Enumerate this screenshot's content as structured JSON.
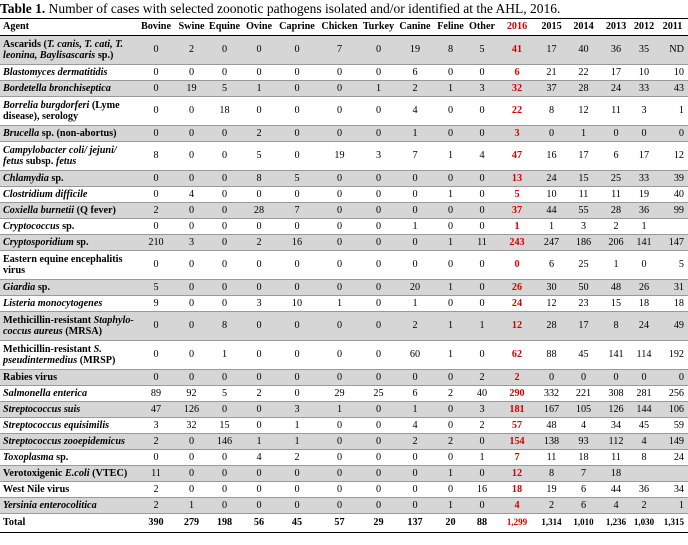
{
  "caption": {
    "label": "Table 1.",
    "text": " Number of cases with selected zoonotic pathogens isolated and/or identified at the AHL, 2016."
  },
  "columns": [
    "Agent",
    "Bovine",
    "Swine",
    "Equine",
    "Ovine",
    "Caprine",
    "Chicken",
    "Turkey",
    "Canine",
    "Feline",
    "Other",
    "2016",
    "2015",
    "2014",
    "2013",
    "2012",
    "2011"
  ],
  "rows": [
    {
      "agent_html": "Ascarids (<i>T. canis, T. cati, T. leonina, Baylisascaris</i> sp.)",
      "shade": true,
      "h": 28,
      "values": [
        "0",
        "2",
        "0",
        "0",
        "0",
        "7",
        "0",
        "19",
        "8",
        "5",
        "41",
        "17",
        "40",
        "36",
        "35",
        "ND"
      ]
    },
    {
      "agent_html": "<i>Blastomyces dermatitidis</i>",
      "shade": false,
      "h": 15,
      "values": [
        "0",
        "0",
        "0",
        "0",
        "0",
        "0",
        "0",
        "6",
        "0",
        "0",
        "6",
        "21",
        "22",
        "17",
        "10",
        "10"
      ]
    },
    {
      "agent_html": "<i>Bordetella bronchiseptica</i>",
      "shade": true,
      "h": 15,
      "values": [
        "0",
        "19",
        "5",
        "1",
        "0",
        "0",
        "1",
        "2",
        "1",
        "3",
        "32",
        "37",
        "28",
        "24",
        "33",
        "43"
      ]
    },
    {
      "agent_html": "<i>Borrelia burgdorferi</i> (Lyme disease), serology",
      "shade": false,
      "h": 28,
      "values": [
        "0",
        "0",
        "18",
        "0",
        "0",
        "0",
        "0",
        "4",
        "0",
        "0",
        "22",
        "8",
        "12",
        "11",
        "3",
        "1"
      ]
    },
    {
      "agent_html": "<i>Brucella</i> sp. (non-abortus)",
      "shade": true,
      "h": 15,
      "values": [
        "0",
        "0",
        "0",
        "2",
        "0",
        "0",
        "0",
        "1",
        "0",
        "0",
        "3",
        "0",
        "1",
        "0",
        "0",
        "0"
      ]
    },
    {
      "agent_html": "<i>Campylobacter coli/ jejuni/ fetus</i> subsp. <i>fetus</i>",
      "shade": false,
      "h": 28,
      "values": [
        "8",
        "0",
        "0",
        "5",
        "0",
        "19",
        "3",
        "7",
        "1",
        "4",
        "47",
        "16",
        "17",
        "6",
        "17",
        "12"
      ]
    },
    {
      "agent_html": "<i>Chlamydia</i> sp.",
      "shade": true,
      "h": 15,
      "values": [
        "0",
        "0",
        "0",
        "8",
        "5",
        "0",
        "0",
        "0",
        "0",
        "0",
        "13",
        "24",
        "15",
        "25",
        "33",
        "39"
      ]
    },
    {
      "agent_html": "<i>Clostridium difficile</i>",
      "shade": false,
      "h": 15,
      "values": [
        "0",
        "4",
        "0",
        "0",
        "0",
        "0",
        "0",
        "0",
        "1",
        "0",
        "5",
        "10",
        "11",
        "11",
        "19",
        "40"
      ]
    },
    {
      "agent_html": "<i>Coxiella burnetii</i> (Q fever)",
      "shade": true,
      "h": 15,
      "values": [
        "2",
        "0",
        "0",
        "28",
        "7",
        "0",
        "0",
        "0",
        "0",
        "0",
        "37",
        "44",
        "55",
        "28",
        "36",
        "99"
      ]
    },
    {
      "agent_html": "<i>Cryptococcus</i> sp.",
      "shade": false,
      "h": 15,
      "values": [
        "0",
        "0",
        "0",
        "0",
        "0",
        "0",
        "0",
        "1",
        "0",
        "0",
        "1",
        "1",
        "3",
        "2",
        "1",
        ""
      ]
    },
    {
      "agent_html": "<i>Cryptosporidium</i> sp.",
      "shade": true,
      "h": 15,
      "values": [
        "210",
        "3",
        "0",
        "2",
        "16",
        "0",
        "0",
        "0",
        "1",
        "11",
        "243",
        "247",
        "186",
        "206",
        "141",
        "147"
      ]
    },
    {
      "agent_html": "Eastern equine encephalitis virus",
      "shade": false,
      "h": 28,
      "values": [
        "0",
        "0",
        "0",
        "0",
        "0",
        "0",
        "0",
        "0",
        "0",
        "0",
        "0",
        "6",
        "25",
        "1",
        "0",
        "5"
      ]
    },
    {
      "agent_html": "<i>Giardia</i> sp.",
      "shade": true,
      "h": 15,
      "values": [
        "5",
        "0",
        "0",
        "0",
        "0",
        "0",
        "0",
        "20",
        "1",
        "0",
        "26",
        "30",
        "50",
        "48",
        "26",
        "31"
      ]
    },
    {
      "agent_html": "<i>Listeria monocytogenes</i>",
      "shade": false,
      "h": 15,
      "values": [
        "9",
        "0",
        "0",
        "3",
        "10",
        "1",
        "0",
        "1",
        "0",
        "0",
        "24",
        "12",
        "23",
        "15",
        "18",
        "18"
      ]
    },
    {
      "agent_html": "Methicillin-resistant <i>Staphylo-coccus aureus</i> (MRSA)",
      "shade": true,
      "h": 28,
      "values": [
        "0",
        "0",
        "8",
        "0",
        "0",
        "0",
        "0",
        "2",
        "1",
        "1",
        "12",
        "28",
        "17",
        "8",
        "24",
        "49"
      ]
    },
    {
      "agent_html": "Methicillin-resistant <i>S. pseudintermedius</i> (MRSP)",
      "shade": false,
      "h": 28,
      "values": [
        "0",
        "0",
        "1",
        "0",
        "0",
        "0",
        "0",
        "60",
        "1",
        "0",
        "62",
        "88",
        "45",
        "141",
        "114",
        "192"
      ]
    },
    {
      "agent_html": "Rabies virus",
      "shade": true,
      "h": 15,
      "values": [
        "0",
        "0",
        "0",
        "0",
        "0",
        "0",
        "0",
        "0",
        "0",
        "2",
        "2",
        "0",
        "0",
        "0",
        "0",
        "0"
      ]
    },
    {
      "agent_html": "<i>Salmonella enterica</i>",
      "shade": false,
      "h": 15,
      "values": [
        "89",
        "92",
        "5",
        "2",
        "0",
        "29",
        "25",
        "6",
        "2",
        "40",
        "290",
        "332",
        "221",
        "308",
        "281",
        "256"
      ]
    },
    {
      "agent_html": "<i>Streptococcus suis</i>",
      "shade": true,
      "h": 15,
      "values": [
        "47",
        "126",
        "0",
        "0",
        "3",
        "1",
        "0",
        "1",
        "0",
        "3",
        "181",
        "167",
        "105",
        "126",
        "144",
        "106"
      ]
    },
    {
      "agent_html": "<i>Streptococcus equisimilis</i>",
      "shade": false,
      "h": 15,
      "values": [
        "3",
        "32",
        "15",
        "0",
        "1",
        "0",
        "0",
        "4",
        "0",
        "2",
        "57",
        "48",
        "4",
        "34",
        "45",
        "59"
      ]
    },
    {
      "agent_html": "<i>Streptococcus zooepidemicus</i>",
      "shade": true,
      "h": 15,
      "values": [
        "2",
        "0",
        "146",
        "1",
        "1",
        "0",
        "0",
        "2",
        "2",
        "0",
        "154",
        "138",
        "93",
        "112",
        "4",
        "149"
      ]
    },
    {
      "agent_html": "<i>Toxoplasma</i> sp.",
      "shade": false,
      "h": 15,
      "values": [
        "0",
        "0",
        "0",
        "4",
        "2",
        "0",
        "0",
        "0",
        "0",
        "1",
        "7",
        "11",
        "18",
        "11",
        "8",
        "24"
      ]
    },
    {
      "agent_html": "Verotoxigenic <i>E.coli</i> (VTEC)",
      "shade": true,
      "h": 15,
      "values": [
        "11",
        "0",
        "0",
        "0",
        "0",
        "0",
        "0",
        "0",
        "1",
        "0",
        "12",
        "8",
        "7",
        "18",
        "",
        ""
      ]
    },
    {
      "agent_html": "West Nile virus",
      "shade": false,
      "h": 15,
      "values": [
        "2",
        "0",
        "0",
        "0",
        "0",
        "0",
        "0",
        "0",
        "0",
        "16",
        "18",
        "19",
        "6",
        "44",
        "36",
        "34"
      ]
    },
    {
      "agent_html": "<i>Yersinia enterocolitica</i>",
      "shade": true,
      "h": 15,
      "values": [
        "2",
        "1",
        "0",
        "0",
        "0",
        "0",
        "0",
        "0",
        "1",
        "0",
        "4",
        "2",
        "6",
        "4",
        "2",
        "1"
      ]
    }
  ],
  "total": {
    "label": "Total",
    "values": [
      "390",
      "279",
      "198",
      "56",
      "45",
      "57",
      "29",
      "137",
      "20",
      "88",
      "1,299",
      "1,314",
      "1,010",
      "1,236",
      "1,030",
      "1,315"
    ]
  },
  "colors": {
    "shade": "#d6d6d6",
    "highlight_2016": "#d40000"
  }
}
